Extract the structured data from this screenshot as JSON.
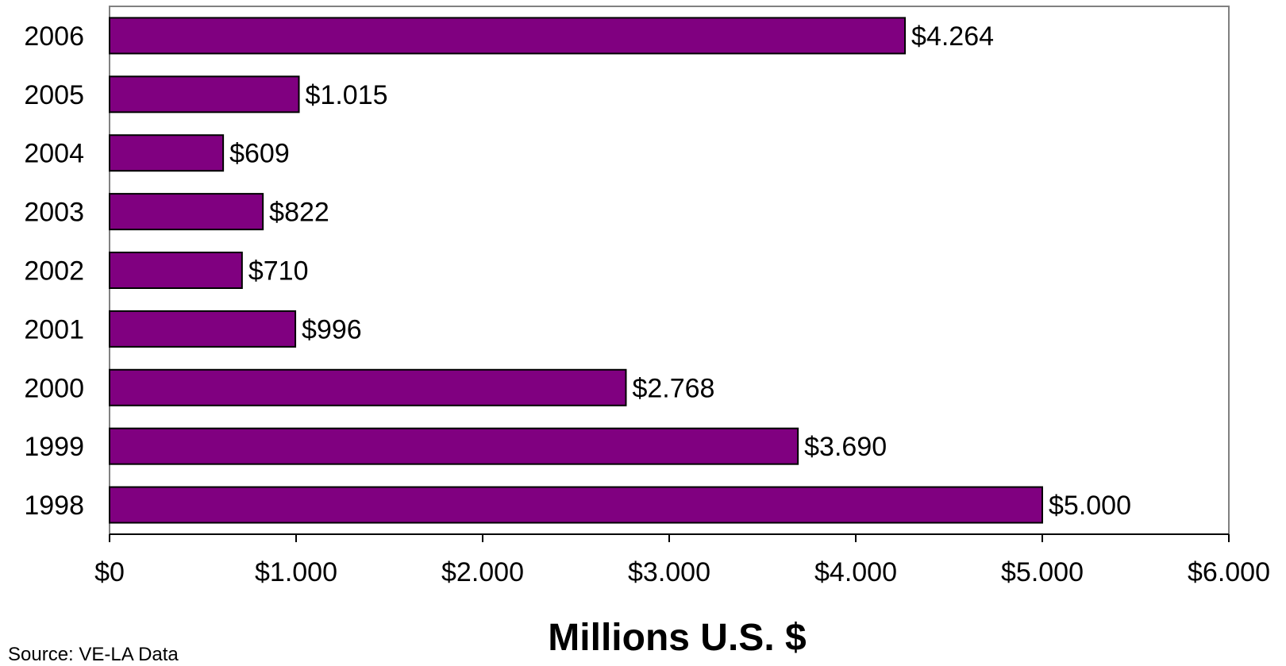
{
  "chart_data": {
    "type": "bar",
    "orientation": "horizontal",
    "categories": [
      "2006",
      "2005",
      "2004",
      "2003",
      "2002",
      "2001",
      "2000",
      "1999",
      "1998"
    ],
    "values": [
      4264,
      1015,
      609,
      822,
      710,
      996,
      2768,
      3690,
      5000
    ],
    "data_labels": [
      "$4.264",
      "$1.015",
      "$609",
      "$822",
      "$710",
      "$996",
      "$2.768",
      "$3.690",
      "$5.000"
    ],
    "xlim": [
      0,
      6000
    ],
    "x_ticks": [
      0,
      1000,
      2000,
      3000,
      4000,
      5000,
      6000
    ],
    "x_tick_labels": [
      "$0",
      "$1.000",
      "$2.000",
      "$3.000",
      "$4.000",
      "$5.000",
      "$6.000"
    ],
    "xlabel": "Millions U.S. $",
    "ylabel": "",
    "title": "",
    "grid": false,
    "legend": "none",
    "bar_color": "#800080",
    "bar_border_color": "#000000",
    "plot_border_color": "#808080"
  },
  "source_note": "Source: VE-LA Data"
}
